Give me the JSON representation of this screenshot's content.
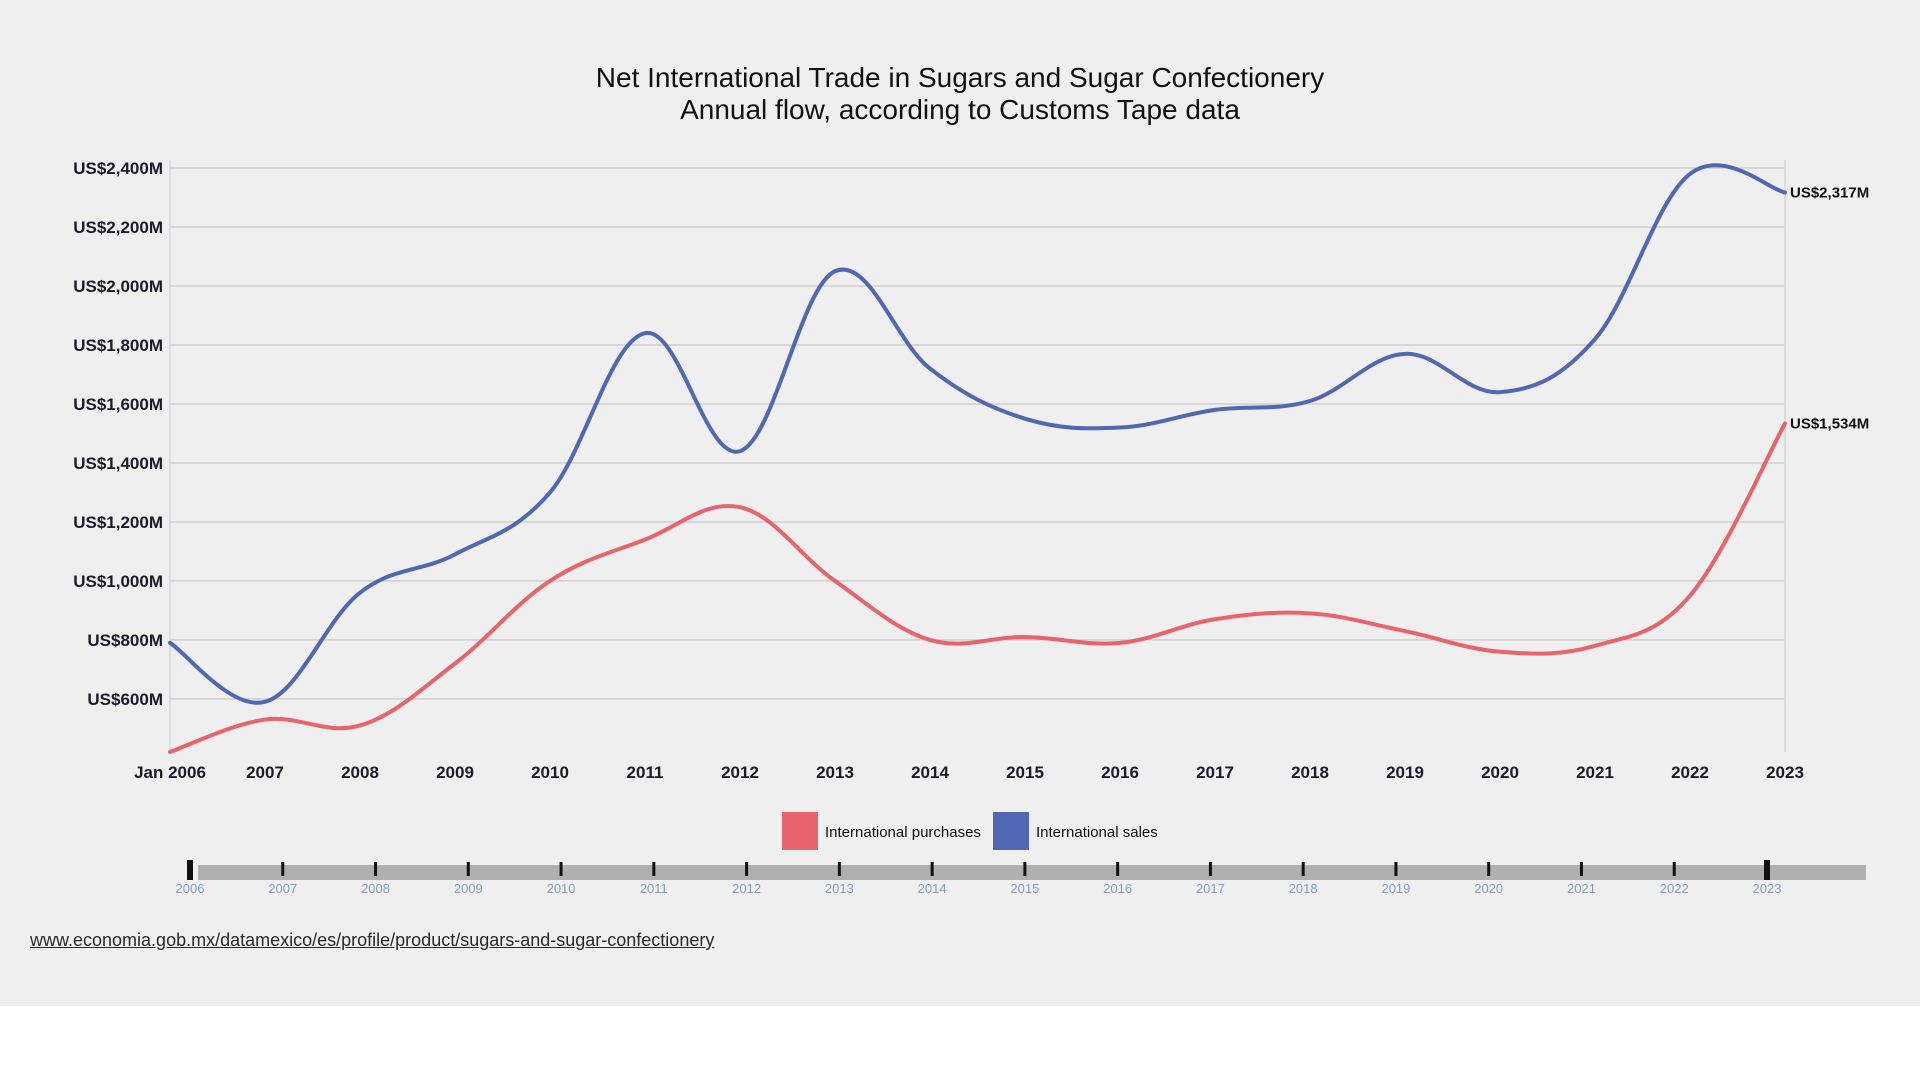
{
  "chart_data": {
    "type": "line",
    "title": "Net International Trade in Sugars and Sugar Confectionery",
    "subtitle": "Annual flow, according to Customs Tape data",
    "x": [
      "Jan 2006",
      "2007",
      "2008",
      "2009",
      "2010",
      "2011",
      "2012",
      "2013",
      "2014",
      "2015",
      "2016",
      "2017",
      "2018",
      "2019",
      "2020",
      "2021",
      "2022",
      "2023"
    ],
    "y_ticks": [
      {
        "value": 600,
        "label": "US$600M"
      },
      {
        "value": 800,
        "label": "US$800M"
      },
      {
        "value": 1000,
        "label": "US$1,000M"
      },
      {
        "value": 1200,
        "label": "US$1,200M"
      },
      {
        "value": 1400,
        "label": "US$1,400M"
      },
      {
        "value": 1600,
        "label": "US$1,600M"
      },
      {
        "value": 1800,
        "label": "US$1,800M"
      },
      {
        "value": 2000,
        "label": "US$2,000M"
      },
      {
        "value": 2200,
        "label": "US$2,200M"
      },
      {
        "value": 2400,
        "label": "US$2,400M"
      }
    ],
    "ylim": [
      420,
      2400
    ],
    "grid": true,
    "legend_position": "bottom-center",
    "series": [
      {
        "name": "International purchases",
        "color": "#e8636b",
        "values": [
          420,
          530,
          510,
          720,
          1000,
          1140,
          1250,
          1000,
          800,
          810,
          790,
          870,
          890,
          830,
          760,
          780,
          950,
          1534
        ],
        "end_label": "US$1,534M"
      },
      {
        "name": "International sales",
        "color": "#5068b3",
        "values": [
          790,
          590,
          960,
          1090,
          1300,
          1840,
          1440,
          2050,
          1720,
          1550,
          1520,
          1580,
          1610,
          1770,
          1640,
          1820,
          2380,
          2317
        ],
        "end_label": "US$2,317M"
      }
    ]
  },
  "timeline": {
    "years": [
      "2006",
      "2007",
      "2008",
      "2009",
      "2010",
      "2011",
      "2012",
      "2013",
      "2014",
      "2015",
      "2016",
      "2017",
      "2018",
      "2019",
      "2020",
      "2021",
      "2022",
      "2023"
    ],
    "range": [
      "2006",
      "2023"
    ]
  },
  "source_link": "www.economia.gob.mx/datamexico/es/profile/product/sugars-and-sugar-confectionery"
}
